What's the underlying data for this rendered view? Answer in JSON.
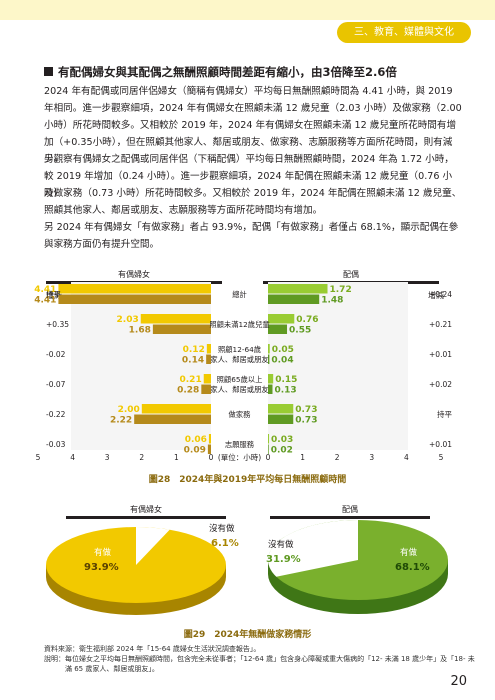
{
  "header": {
    "tab_label": "三、教育、媒體與文化"
  },
  "section_title": "有配偶婦女與其配偶之無酬照顧時間差距有縮小，由3倍降至2.6倍",
  "paragraphs": [
    "2024 年有配偶或同居伴侶婦女（簡稱有偶婦女）平均每日無酬照顧時間為 4.41 小時，與 2019",
    "年相同。進一步觀察細項，2024 年有偶婦女在照顧未滿 12 歲兒童（2.03 小時）及做家務（2.00",
    "小時）所花時間較多。又相較於 2019 年，2024 年有偶婦女在照顧未滿 12 歲兒童所花時間有增",
    "加（+0.35小時），但在照顧其他家人、鄰居或朋友、做家務、志願服務等方面所花時間，則有減少。",
    "另觀察有偶婦女之配偶或同居伴侶（下稱配偶）平均每日無酬照顧時間，2024 年為 1.72 小時，",
    "較 2019 年增加（0.24 小時）。進一步觀察細項，2024 年配偶在照顧未滿 12 歲兒童（0.76 小時）",
    "及做家務（0.73 小時）所花時間較多。又相較於 2019 年，2024 年配偶在照顧未滿 12 歲兒童、",
    "照顧其他家人、鄰居或朋友、志願服務等方面所花時間均有增加。",
    "另 2024 年有偶婦女「有做家務」者占 93.9%，配偶「有做家務」者僅占 68.1%，顯示配偶在參",
    "與家務方面仍有提升空間。"
  ],
  "fig28": {
    "caption": "圖28　2024年與2019年平均每日無酬照顧時間",
    "left_title": "有偶婦女",
    "right_title": "配偶",
    "change_label": "增減",
    "unit_label": "(單位：小時)",
    "categories": [
      "總計",
      "照顧未滿12歲兒童",
      "照顧12-64歲家人、鄰居或朋友",
      "照顧65歲以上家人、鄰居或朋友",
      "做家務",
      "志願服務"
    ],
    "category_lines": [
      [
        "總計"
      ],
      [
        "照顧未滿12歲兒童"
      ],
      [
        "照顧12-64歲",
        "家人、鄰居或朋友"
      ],
      [
        "照顧65歲以上",
        "家人、鄰居或朋友"
      ],
      [
        "做家務"
      ],
      [
        "志願服務"
      ]
    ],
    "women_change": [
      "持平",
      "+0.35",
      "-0.02",
      "-0.07",
      "-0.22",
      "-0.03"
    ],
    "spouse_change": [
      "+0.24",
      "+0.21",
      "+0.01",
      "+0.02",
      "持平",
      "+0.01"
    ],
    "left_ticks": [
      "5",
      "4",
      "3",
      "2",
      "1",
      "0"
    ],
    "right_ticks": [
      "0",
      "1",
      "2",
      "3",
      "4",
      "5"
    ],
    "colors": {
      "women2024": "#f2c900",
      "women2019": "#b58a1b",
      "spouse2024": "#99cc33",
      "spouse2019": "#5f9a22"
    }
  },
  "chart_data": [
    {
      "type": "bar",
      "title": "有偶婦女",
      "categories": [
        "總計",
        "照顧未滿12歲兒童",
        "照顧12-64歲家人、鄰居或朋友",
        "照顧65歲以上家人、鄰居或朋友",
        "做家務",
        "志願服務"
      ],
      "series": [
        {
          "name": "2024年",
          "values": [
            4.41,
            2.03,
            0.12,
            0.21,
            2.0,
            0.06
          ]
        },
        {
          "name": "2019年",
          "values": [
            4.41,
            1.68,
            0.14,
            0.28,
            2.22,
            0.09
          ]
        }
      ],
      "xlim": [
        0,
        5
      ],
      "xlabel": "(單位：小時)"
    },
    {
      "type": "bar",
      "title": "配偶",
      "categories": [
        "總計",
        "照顧未滿12歲兒童",
        "照顧12-64歲家人、鄰居或朋友",
        "照顧65歲以上家人、鄰居或朋友",
        "做家務",
        "志願服務"
      ],
      "series": [
        {
          "name": "2024年",
          "values": [
            1.72,
            0.76,
            0.05,
            0.15,
            0.73,
            0.03
          ]
        },
        {
          "name": "2019年",
          "values": [
            1.48,
            0.55,
            0.04,
            0.13,
            0.73,
            0.02
          ]
        }
      ],
      "xlim": [
        0,
        5
      ],
      "xlabel": "(單位：小時)"
    },
    {
      "type": "pie",
      "title": "有偶婦女",
      "categories": [
        "有做",
        "沒有做"
      ],
      "values": [
        93.9,
        6.1
      ],
      "labels": [
        "93.9%",
        "6.1%"
      ]
    },
    {
      "type": "pie",
      "title": "配偶",
      "categories": [
        "有做",
        "沒有做"
      ],
      "values": [
        68.1,
        31.9
      ],
      "labels": [
        "68.1%",
        "31.9%"
      ]
    }
  ],
  "fig29": {
    "caption": "圖29　2024年無酬做家務情形",
    "left_title": "有偶婦女",
    "right_title": "配偶",
    "done_label": "有做",
    "not_done_label": "沒有做",
    "colors": {
      "women": "#f2c900",
      "women_dark": "#a88500",
      "spouse": "#7ab02d",
      "spouse_dark": "#3f7616"
    }
  },
  "source": {
    "line1": "資料來源：衛生福利部 2024 年「15-64 歲婦女生活狀況調查報告」。",
    "line2": "說明：每位婦女之平均每日無酬照顧時間，包含完全未從事者；「12-64 歲」包含身心障礙或重大傷病的「12- 未滿 18 歲少年」及「18- 未",
    "line3": "　　　滿 65 歲家人、鄰居或朋友」。"
  },
  "page_number": "20"
}
